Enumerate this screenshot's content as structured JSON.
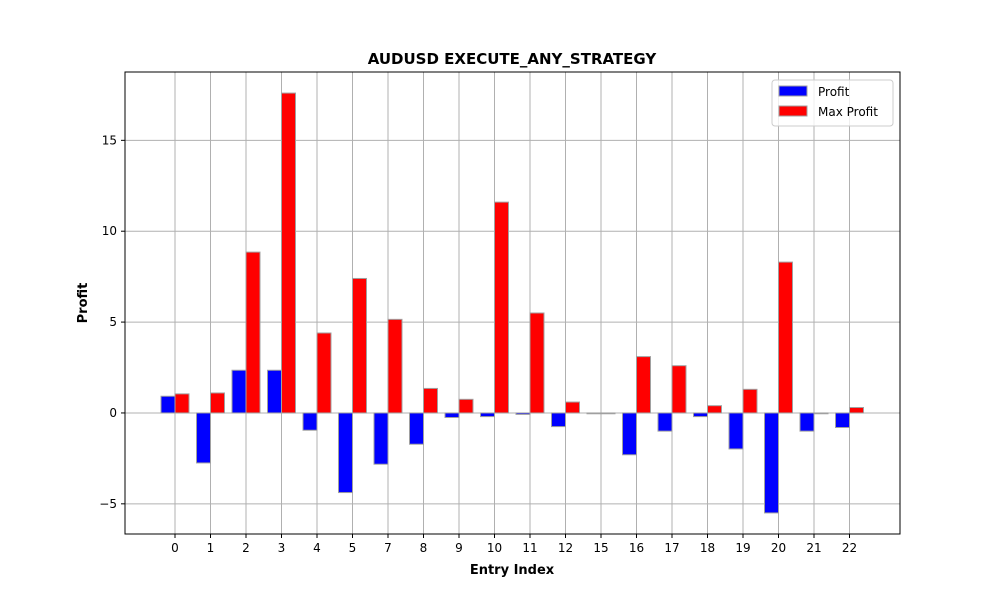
{
  "chart_data": {
    "type": "bar",
    "title": "AUDUSD EXECUTE_ANY_STRATEGY",
    "xlabel": "Entry Index",
    "ylabel": "Profit",
    "categories": [
      "0",
      "1",
      "2",
      "3",
      "4",
      "5",
      "7",
      "8",
      "9",
      "10",
      "11",
      "12",
      "15",
      "16",
      "17",
      "18",
      "19",
      "20",
      "21",
      "22"
    ],
    "series": [
      {
        "name": "Profit",
        "color": "#0000ff",
        "values": [
          0.92,
          -2.75,
          2.35,
          2.35,
          -0.95,
          -4.38,
          -2.82,
          -1.72,
          -0.25,
          -0.2,
          -0.08,
          -0.75,
          0.0,
          -2.3,
          -1.0,
          -0.2,
          -1.98,
          -5.5,
          -1.0,
          -0.8
        ]
      },
      {
        "name": "Max Profit",
        "color": "#ff0000",
        "values": [
          1.05,
          1.1,
          8.85,
          17.6,
          4.4,
          7.4,
          5.15,
          1.35,
          0.75,
          11.6,
          5.5,
          0.6,
          0.0,
          3.1,
          2.6,
          0.4,
          1.3,
          8.3,
          0.0,
          0.3
        ]
      }
    ],
    "y_ticks": [
      -5,
      0,
      5,
      10,
      15
    ],
    "ylim": [
      -6.66,
      18.76
    ],
    "grid": true,
    "legend_position": "top-right",
    "bar_edge_color": "#a0a0a0"
  }
}
